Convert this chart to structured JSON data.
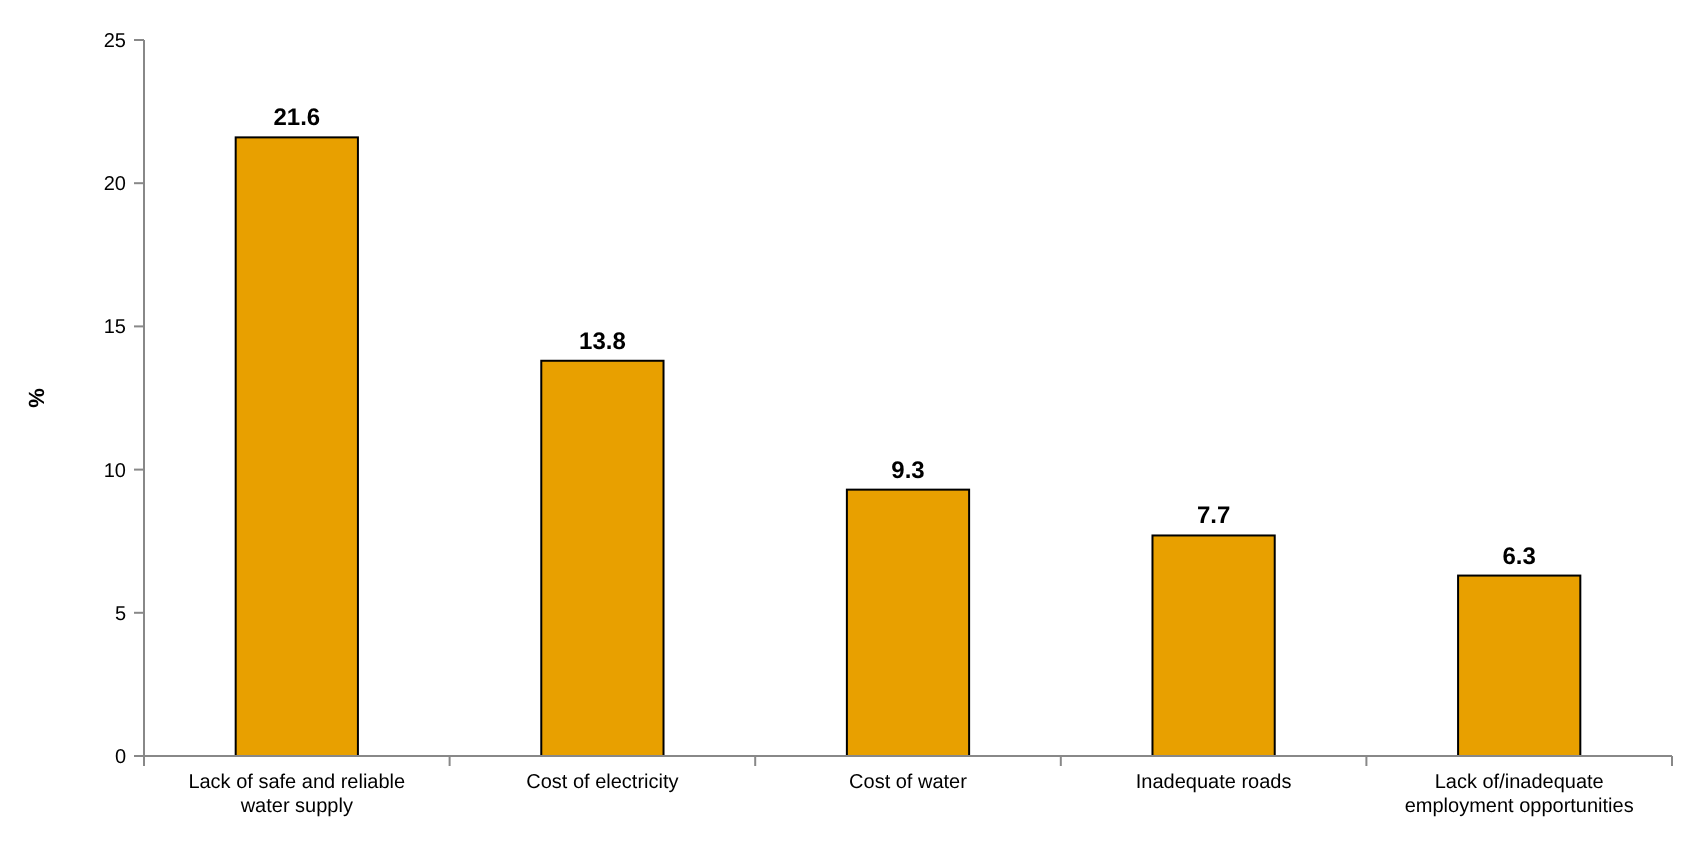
{
  "chart_data": {
    "type": "bar",
    "ylabel": "%",
    "categories": [
      "Lack of safe and reliable water supply",
      "Cost of electricity",
      "Cost of water",
      "Inadequate roads",
      "Lack of/inadequate employment opportunities"
    ],
    "values": [
      21.6,
      13.8,
      9.3,
      7.7,
      6.3
    ],
    "color": "#e8a000",
    "ylim": [
      0,
      25
    ],
    "yticks": [
      0,
      5,
      10,
      15,
      20,
      25
    ],
    "grid": false,
    "data_labels": true
  }
}
